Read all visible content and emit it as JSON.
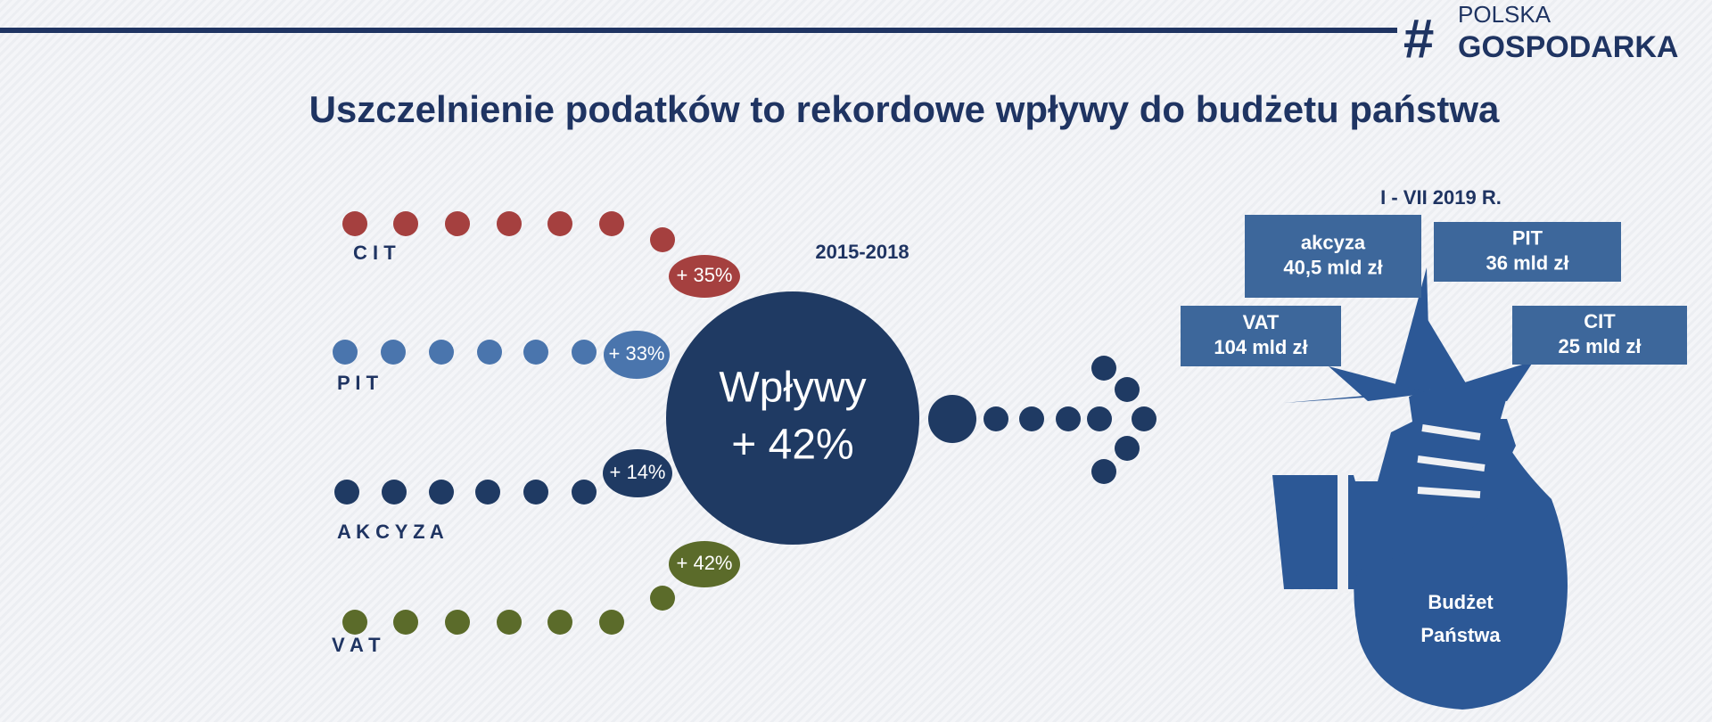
{
  "header": {
    "logo_line1": "POLSKA",
    "logo_line2": "GOSPODARKA",
    "logo_mark": "#",
    "title": "Uszczelnienie podatków to rekordowe wpływy do budżetu państwa"
  },
  "left": {
    "period": "2015-2018",
    "categories": [
      {
        "label": "C I T",
        "growth": "+ 35%"
      },
      {
        "label": "P I T",
        "growth": "+ 33%"
      },
      {
        "label": "A K C Y Z A",
        "growth": "+ 14%"
      },
      {
        "label": "V A T",
        "growth": "+ 42%"
      }
    ],
    "center": {
      "line1": "Wpływy",
      "line2": "+ 42%"
    }
  },
  "right": {
    "period": "I - VII 2019 R.",
    "items": [
      {
        "name": "akcyza",
        "amount": "40,5 mld zł"
      },
      {
        "name": "PIT",
        "amount": "36 mld zł"
      },
      {
        "name": "VAT",
        "amount": "104 mld zł"
      },
      {
        "name": "CIT",
        "amount": "25 mld zł"
      }
    ],
    "bag": {
      "line1": "Budżet",
      "line2": "Państwa"
    }
  }
}
